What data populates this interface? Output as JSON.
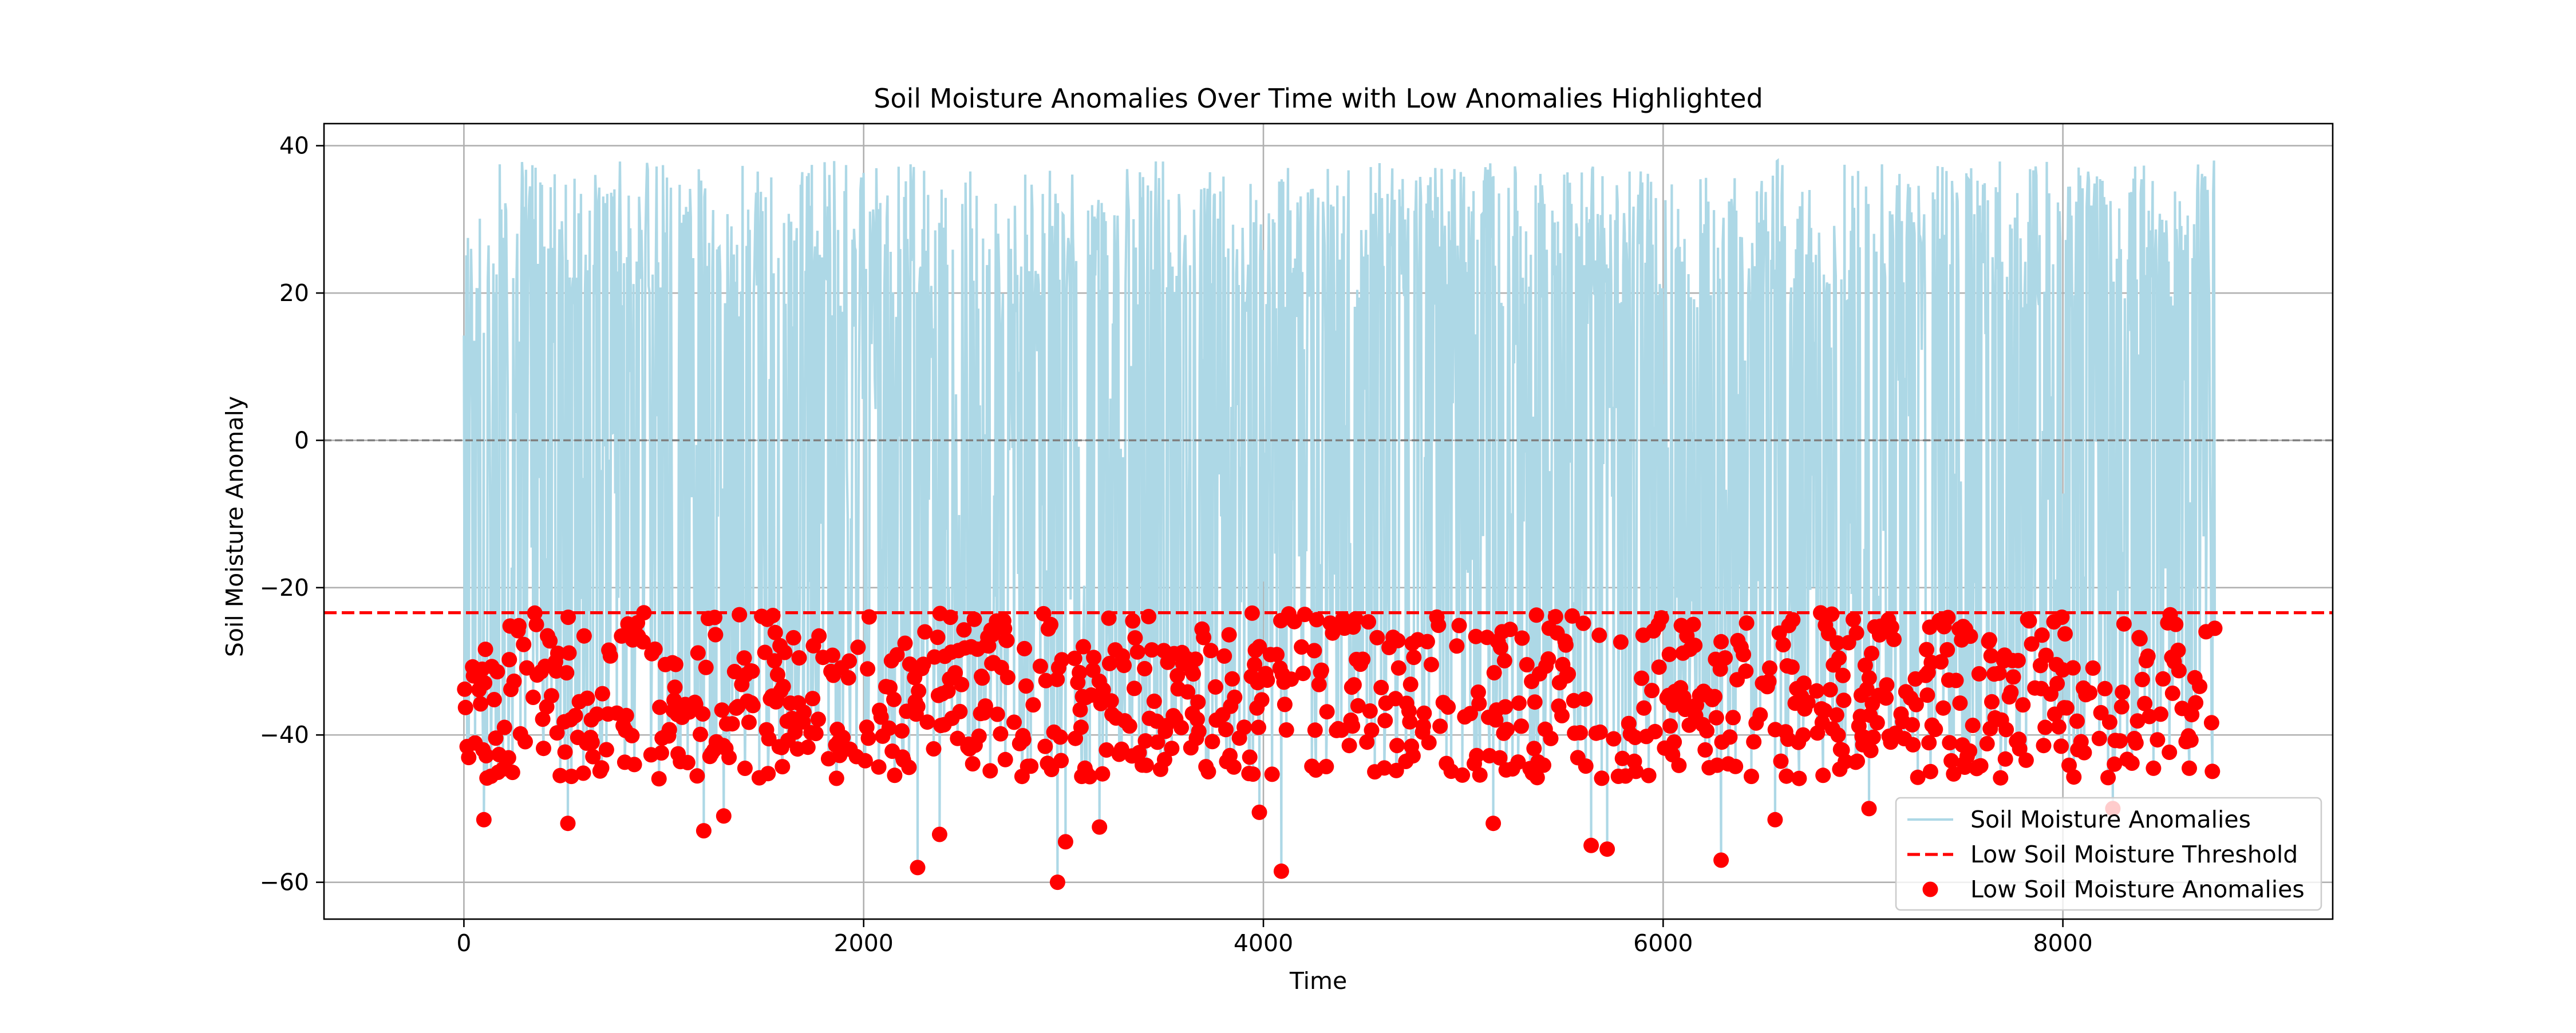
{
  "chart_data": {
    "type": "line",
    "title": "Soil Moisture Anomalies Over Time with Low Anomalies Highlighted",
    "xlabel": "Time",
    "ylabel": "Soil Moisture Anomaly",
    "xlim": [
      -700,
      9350
    ],
    "ylim": [
      -65,
      43
    ],
    "xticks": [
      {
        "value": 0,
        "label": "0"
      },
      {
        "value": 2000,
        "label": "2000"
      },
      {
        "value": 4000,
        "label": "4000"
      },
      {
        "value": 6000,
        "label": "6000"
      },
      {
        "value": 8000,
        "label": "8000"
      }
    ],
    "yticks": [
      {
        "value": -60,
        "label": "−60"
      },
      {
        "value": -40,
        "label": "−40"
      },
      {
        "value": -20,
        "label": "−20"
      },
      {
        "value": 0,
        "label": "0"
      },
      {
        "value": 20,
        "label": "20"
      },
      {
        "value": 40,
        "label": "40"
      }
    ],
    "grid": true,
    "legend_position": "lower-right",
    "x_range": [
      0,
      8760
    ],
    "zero_line": {
      "value": 0,
      "color": "#808080"
    },
    "threshold": {
      "name": "Low Soil Moisture Threshold",
      "value": -23.4,
      "color": "#ff0000"
    },
    "series": [
      {
        "name": "Soil Moisture Anomalies",
        "kind": "line",
        "color": "#add8e6",
        "approx_max": 38,
        "approx_min": -60
      },
      {
        "name": "Low Soil Moisture Anomalies",
        "kind": "scatter",
        "color": "#ff0000",
        "rule": "values below threshold"
      }
    ],
    "notable_low_points": [
      {
        "x": 2270,
        "y": -58
      },
      {
        "x": 2970,
        "y": -60
      },
      {
        "x": 4090,
        "y": -58.5
      },
      {
        "x": 6290,
        "y": -57
      },
      {
        "x": 5640,
        "y": -55
      },
      {
        "x": 5720,
        "y": -55.5
      },
      {
        "x": 3010,
        "y": -54.5
      },
      {
        "x": 2380,
        "y": -53.5
      },
      {
        "x": 1200,
        "y": -53
      },
      {
        "x": 3180,
        "y": -52.5
      },
      {
        "x": 5150,
        "y": -52
      },
      {
        "x": 520,
        "y": -52
      },
      {
        "x": 100,
        "y": -51.5
      },
      {
        "x": 6560,
        "y": -51.5
      },
      {
        "x": 3980,
        "y": -50.5
      },
      {
        "x": 7030,
        "y": -50
      },
      {
        "x": 8250,
        "y": -50
      },
      {
        "x": 1300,
        "y": -51
      }
    ]
  }
}
